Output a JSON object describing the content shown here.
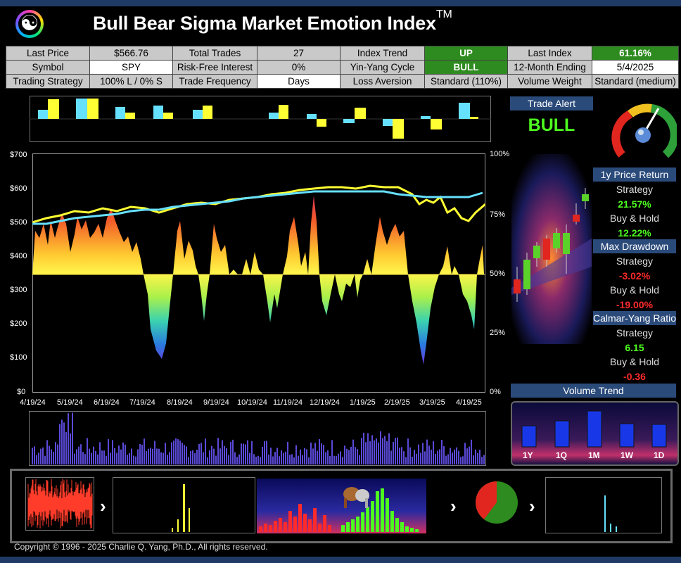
{
  "header": {
    "title": "Bull Bear Sigma Market Emotion Index",
    "tm": "TM"
  },
  "info": {
    "last_price_label": "Last Price",
    "last_price": "$566.76",
    "total_trades_label": "Total Trades",
    "total_trades": "27",
    "index_trend_label": "Index Trend",
    "index_trend": "UP",
    "last_index_label": "Last Index",
    "last_index": "61.16%",
    "symbol_label": "Symbol",
    "symbol": "SPY",
    "rf_label": "Risk-Free Interest",
    "rf": "0%",
    "yy_label": "Yin-Yang Cycle",
    "yy": "BULL",
    "month_label": "12-Month Ending",
    "month": "5/4/2025",
    "strategy_label": "Trading Strategy",
    "strategy": "100% L / 0% S",
    "freq_label": "Trade Frequency",
    "freq": "Days",
    "loss_label": "Loss Aversion",
    "loss": "Standard (110%)",
    "vw_label": "Volume Weight",
    "vw": "Standard (medium)"
  },
  "main_chart": {
    "y_left": [
      "$700",
      "$600",
      "$500",
      "$400",
      "$300",
      "$200",
      "$100",
      "$0"
    ],
    "y_right": [
      "100%",
      "75%",
      "50%",
      "25%",
      "0%"
    ],
    "x_labels": [
      "4/19/24",
      "5/19/24",
      "6/19/24",
      "7/19/24",
      "8/19/24",
      "9/19/24",
      "10/19/24",
      "11/19/24",
      "12/19/24",
      "1/19/25",
      "2/19/25",
      "3/19/25",
      "4/19/25"
    ]
  },
  "trade_alert": {
    "label": "Trade Alert",
    "value": "BULL"
  },
  "metrics": {
    "m1_head": "1y Price Return",
    "m1_s_lab": "Strategy",
    "m1_s": "21.57%",
    "m1_b_lab": "Buy & Hold",
    "m1_b": "12.22%",
    "m2_head": "Max Drawdown",
    "m2_s_lab": "Strategy",
    "m2_s": "-3.02%",
    "m2_b_lab": "Buy & Hold",
    "m2_b": "-19.00%",
    "m3_head": "Calmar-Yang Ratio",
    "m3_s_lab": "Strategy",
    "m3_s": "6.15",
    "m3_b_lab": "Buy & Hold",
    "m3_b": "-0.36"
  },
  "volume_trend": {
    "head": "Volume Trend",
    "labels": [
      "1Y",
      "1Q",
      "1M",
      "1W",
      "1D"
    ]
  },
  "colors": {
    "bull_green": "#4dff1f",
    "bear_red": "#ff2a2a",
    "header_blue": "#2a4a7a",
    "price_yellow": "#ffff33",
    "strategy_cyan": "#66e0ff"
  },
  "icons": {
    "logo": "yin-yang-icon",
    "arrow": "chevron-right-icon",
    "gauge": "gauge-icon"
  },
  "footer": {
    "copyright": "Copyright © 1996 - 2025 Charlie Q. Yang, Ph.D., All rights reserved."
  }
}
